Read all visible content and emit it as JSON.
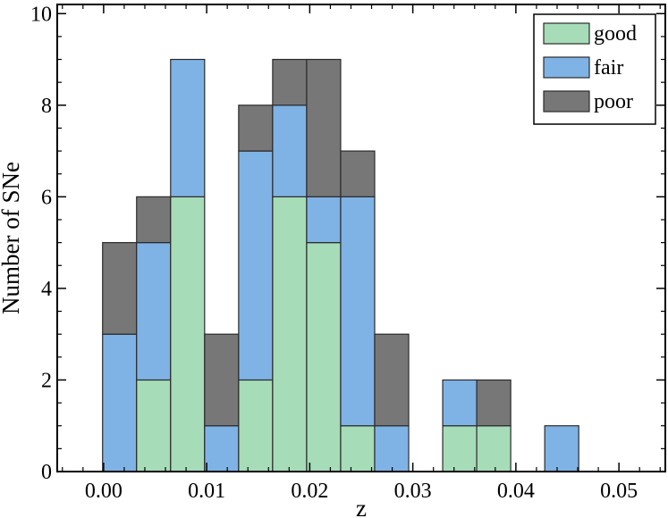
{
  "chart_data": {
    "type": "bar",
    "stacked": true,
    "xlabel": "z",
    "ylabel": "Number of SNe",
    "xlim": [
      -0.0045,
      0.0545
    ],
    "ylim": [
      0,
      10.2
    ],
    "bin_width": 0.0033,
    "bin_left_edges": [
      -0.0001,
      0.0032,
      0.0065,
      0.0098,
      0.0131,
      0.0164,
      0.0197,
      0.023,
      0.0263,
      0.0296,
      0.0329,
      0.0362,
      0.0395,
      0.0428,
      0.0461,
      0.0494
    ],
    "x_ticks": [
      0.0,
      0.01,
      0.02,
      0.03,
      0.04,
      0.05
    ],
    "x_tick_labels": [
      "0.00",
      "0.01",
      "0.02",
      "0.03",
      "0.04",
      "0.05"
    ],
    "y_ticks": [
      0,
      2,
      4,
      6,
      8,
      10
    ],
    "y_tick_labels": [
      "0",
      "2",
      "4",
      "6",
      "8",
      "10"
    ],
    "series": [
      {
        "name": "good",
        "color": "#a6dcb8",
        "values": [
          0,
          2,
          6,
          0,
          2,
          6,
          5,
          1,
          0,
          0,
          1,
          1,
          0,
          0,
          0,
          0
        ]
      },
      {
        "name": "fair",
        "color": "#7fb3e6",
        "values": [
          3,
          3,
          3,
          1,
          5,
          2,
          1,
          5,
          1,
          0,
          1,
          0,
          0,
          1,
          0,
          0
        ]
      },
      {
        "name": "poor",
        "color": "#777777",
        "values": [
          2,
          1,
          0,
          2,
          1,
          1,
          3,
          1,
          2,
          0,
          0,
          1,
          0,
          0,
          0,
          0
        ]
      }
    ],
    "legend_position": "top-right",
    "grid": false
  }
}
